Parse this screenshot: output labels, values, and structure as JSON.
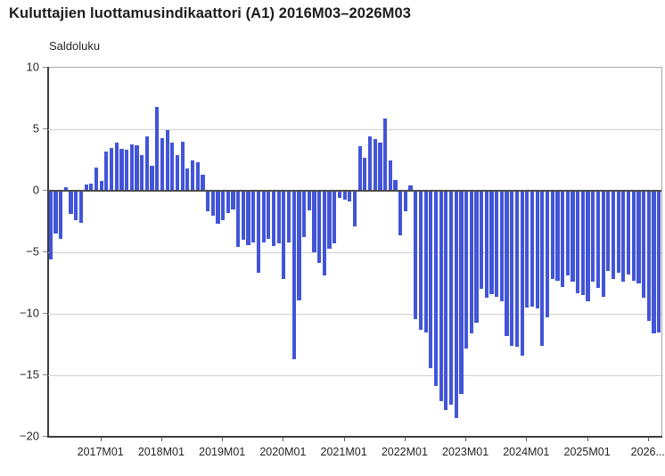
{
  "title": "Kuluttajien luottamusindikaattori (A1) 2016M03–2026M03",
  "chart_data": {
    "type": "bar",
    "title": "Kuluttajien luottamusindikaattori (A1) 2016M03–2026M03",
    "ylabel": "Saldoluku",
    "xlabel": "",
    "ylim": [
      -20,
      10
    ],
    "grid": true,
    "legend": false,
    "bar_color": "#4255d8",
    "ytick_labels": [
      "10",
      "5",
      "0",
      "−5",
      "−10",
      "−15",
      "−20"
    ],
    "ytick_values": [
      10,
      5,
      0,
      -5,
      -10,
      -15,
      -20
    ],
    "xticks": [
      {
        "label": "2017M01",
        "month_index": 10
      },
      {
        "label": "2018M01",
        "month_index": 22
      },
      {
        "label": "2019M01",
        "month_index": 34
      },
      {
        "label": "2020M01",
        "month_index": 46
      },
      {
        "label": "2021M01",
        "month_index": 58
      },
      {
        "label": "2022M01",
        "month_index": 70
      },
      {
        "label": "2023M01",
        "month_index": 82
      },
      {
        "label": "2024M01",
        "month_index": 94
      },
      {
        "label": "2025M01",
        "month_index": 106
      },
      {
        "label": "2026...",
        "month_index": 118
      }
    ],
    "categories": [
      "2016M03",
      "2016M04",
      "2016M05",
      "2016M06",
      "2016M07",
      "2016M08",
      "2016M09",
      "2016M10",
      "2016M11",
      "2016M12",
      "2017M01",
      "2017M02",
      "2017M03",
      "2017M04",
      "2017M05",
      "2017M06",
      "2017M07",
      "2017M08",
      "2017M09",
      "2017M10",
      "2017M11",
      "2017M12",
      "2018M01",
      "2018M02",
      "2018M03",
      "2018M04",
      "2018M05",
      "2018M06",
      "2018M07",
      "2018M08",
      "2018M09",
      "2018M10",
      "2018M11",
      "2018M12",
      "2019M01",
      "2019M02",
      "2019M03",
      "2019M04",
      "2019M05",
      "2019M06",
      "2019M07",
      "2019M08",
      "2019M09",
      "2019M10",
      "2019M11",
      "2019M12",
      "2020M01",
      "2020M02",
      "2020M03",
      "2020M04",
      "2020M05",
      "2020M06",
      "2020M07",
      "2020M08",
      "2020M09",
      "2020M10",
      "2020M11",
      "2020M12",
      "2021M01",
      "2021M02",
      "2021M03",
      "2021M04",
      "2021M05",
      "2021M06",
      "2021M07",
      "2021M08",
      "2021M09",
      "2021M10",
      "2021M11",
      "2021M12",
      "2022M01",
      "2022M02",
      "2022M03",
      "2022M04",
      "2022M05",
      "2022M06",
      "2022M07",
      "2022M08",
      "2022M09",
      "2022M10",
      "2022M11",
      "2022M12",
      "2023M01",
      "2023M02",
      "2023M03",
      "2023M04",
      "2023M05",
      "2023M06",
      "2023M07",
      "2023M08",
      "2023M09",
      "2023M10",
      "2023M11",
      "2023M12",
      "2024M01",
      "2024M02",
      "2024M03",
      "2024M04",
      "2024M05",
      "2024M06",
      "2024M07",
      "2024M08",
      "2024M09",
      "2024M10",
      "2024M11",
      "2024M12",
      "2025M01",
      "2025M02",
      "2025M03",
      "2025M04",
      "2025M05",
      "2025M06",
      "2025M07",
      "2025M08",
      "2025M09",
      "2025M10",
      "2025M11",
      "2025M12",
      "2026M01",
      "2026M02",
      "2026M03"
    ],
    "values": [
      -5.6,
      -3.5,
      -3.9,
      0.3,
      -1.9,
      -2.4,
      -2.6,
      0.5,
      0.6,
      1.9,
      0.8,
      3.2,
      3.5,
      3.9,
      3.4,
      3.3,
      3.8,
      3.7,
      2.9,
      4.4,
      2.0,
      6.8,
      4.3,
      4.9,
      3.9,
      2.9,
      4.0,
      1.8,
      2.5,
      2.3,
      1.3,
      -1.7,
      -2.0,
      -2.7,
      -2.4,
      -1.8,
      -1.5,
      -4.6,
      -4.0,
      -4.4,
      -4.2,
      -6.7,
      -4.2,
      -3.9,
      -4.5,
      -4.3,
      -7.2,
      -4.2,
      -13.7,
      -8.9,
      -3.8,
      -1.6,
      -5.0,
      -5.9,
      -6.9,
      -4.7,
      -4.3,
      -0.6,
      -0.7,
      -0.9,
      -2.9,
      3.6,
      2.7,
      4.4,
      4.2,
      3.9,
      5.9,
      2.5,
      0.9,
      -3.6,
      -1.7,
      0.4,
      -10.4,
      -11.3,
      -11.5,
      -14.4,
      -15.9,
      -17.1,
      -17.8,
      -17.4,
      -18.5,
      -16.5,
      -12.8,
      -11.6,
      -10.7,
      -8.0,
      -8.7,
      -8.4,
      -8.6,
      -9.0,
      -11.8,
      -12.6,
      -12.7,
      -13.4,
      -9.5,
      -9.4,
      -9.6,
      -12.6,
      -10.3,
      -7.2,
      -7.3,
      -7.8,
      -6.9,
      -7.4,
      -8.3,
      -8.5,
      -9.0,
      -7.4,
      -7.9,
      -8.6,
      -6.5,
      -7.2,
      -6.7,
      -7.4,
      -6.8,
      -7.3,
      -7.5,
      -8.7,
      -10.6,
      -11.6,
      -11.5
    ]
  }
}
